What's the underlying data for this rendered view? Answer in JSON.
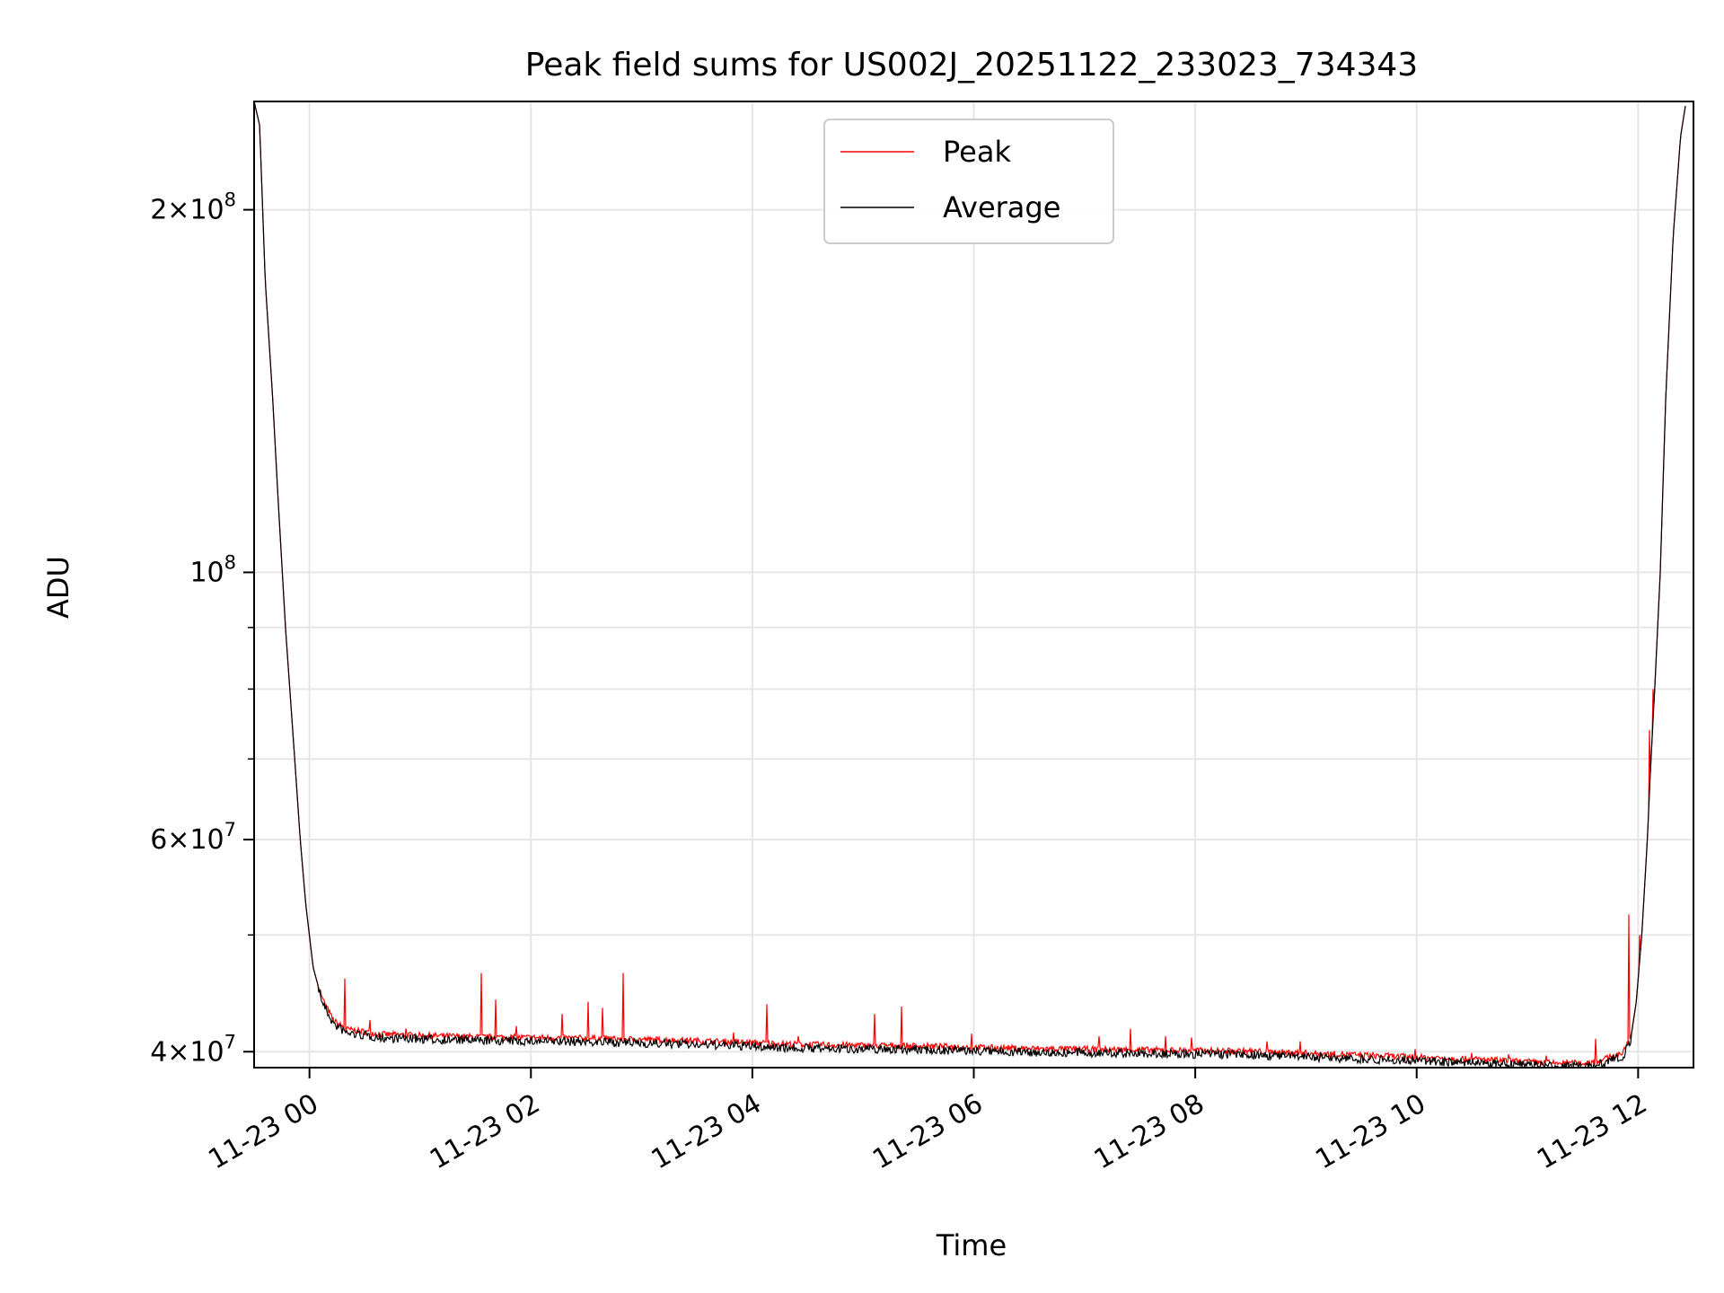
{
  "chart_data": {
    "type": "line",
    "title": "Peak field sums for US002J_20251122_233023_734343",
    "xlabel": "Time",
    "ylabel": "ADU",
    "x_scale": "time",
    "y_scale": "log",
    "xlim": [
      "2025-11-22 23:30",
      "2025-11-23 12:30"
    ],
    "ylim": [
      38800000,
      246000000
    ],
    "grid": true,
    "legend": {
      "placement": "upper center",
      "entries": [
        {
          "name": "Peak",
          "color": "#ff0000"
        },
        {
          "name": "Average",
          "color": "#000000"
        }
      ]
    },
    "x_ticks": [
      {
        "label": "11-23 00",
        "value": "2025-11-23 00:00"
      },
      {
        "label": "11-23 02",
        "value": "2025-11-23 02:00"
      },
      {
        "label": "11-23 04",
        "value": "2025-11-23 04:00"
      },
      {
        "label": "11-23 06",
        "value": "2025-11-23 06:00"
      },
      {
        "label": "11-23 08",
        "value": "2025-11-23 08:00"
      },
      {
        "label": "11-23 10",
        "value": "2025-11-23 10:00"
      },
      {
        "label": "11-23 12",
        "value": "2025-11-23 12:00"
      }
    ],
    "y_ticks": [
      {
        "value": 40000000,
        "base": "4",
        "exp": "7",
        "has_mantissa": true
      },
      {
        "value": 60000000,
        "base": "6",
        "exp": "7",
        "has_mantissa": true
      },
      {
        "value": 100000000,
        "base": "",
        "exp": "8",
        "has_mantissa": false
      },
      {
        "value": 200000000,
        "base": "2",
        "exp": "8",
        "has_mantissa": true
      }
    ],
    "y_minor_ticks": [
      50000000,
      70000000,
      80000000,
      90000000
    ],
    "series": [
      {
        "name": "Average",
        "color": "#000000",
        "points": [
          [
            "2025-11-22 23:30",
            246000000
          ],
          [
            "2025-11-22 23:33",
            235000000
          ],
          [
            "2025-11-22 23:36",
            175000000
          ],
          [
            "2025-11-22 23:40",
            140000000
          ],
          [
            "2025-11-22 23:43",
            115000000
          ],
          [
            "2025-11-22 23:47",
            90000000
          ],
          [
            "2025-11-22 23:52",
            70000000
          ],
          [
            "2025-11-22 23:55",
            60000000
          ],
          [
            "2025-11-22 23:58",
            53000000
          ],
          [
            "2025-11-23 00:02",
            47000000
          ],
          [
            "2025-11-23 00:07",
            44000000
          ],
          [
            "2025-11-23 00:13",
            42200000
          ],
          [
            "2025-11-23 00:20",
            41500000
          ],
          [
            "2025-11-23 00:40",
            41100000
          ],
          [
            "2025-11-23 01:30",
            40900000
          ],
          [
            "2025-11-23 02:30",
            40800000
          ],
          [
            "2025-11-23 03:30",
            40600000
          ],
          [
            "2025-11-23 04:30",
            40300000
          ],
          [
            "2025-11-23 05:30",
            40200000
          ],
          [
            "2025-11-23 06:30",
            40000000
          ],
          [
            "2025-11-23 07:30",
            39900000
          ],
          [
            "2025-11-23 08:30",
            39800000
          ],
          [
            "2025-11-23 09:30",
            39500000
          ],
          [
            "2025-11-23 10:30",
            39200000
          ],
          [
            "2025-11-23 11:15",
            38900000
          ],
          [
            "2025-11-23 11:30",
            38900000
          ],
          [
            "2025-11-23 11:40",
            39100000
          ],
          [
            "2025-11-23 11:52",
            39700000
          ],
          [
            "2025-11-23 11:56",
            41000000
          ],
          [
            "2025-11-23 11:59",
            44000000
          ],
          [
            "2025-11-23 12:02",
            50000000
          ],
          [
            "2025-11-23 12:05",
            60000000
          ],
          [
            "2025-11-23 12:07",
            70000000
          ],
          [
            "2025-11-23 12:09",
            80000000
          ],
          [
            "2025-11-23 12:12",
            100000000
          ],
          [
            "2025-11-23 12:15",
            140000000
          ],
          [
            "2025-11-23 12:19",
            190000000
          ],
          [
            "2025-11-23 12:23",
            230000000
          ],
          [
            "2025-11-23 12:26",
            246000000
          ]
        ]
      },
      {
        "name": "Peak",
        "color": "#ff0000",
        "spikes": [
          [
            "2025-11-23 00:19",
            46000000
          ],
          [
            "2025-11-23 00:33",
            42500000
          ],
          [
            "2025-11-23 00:52",
            41800000
          ],
          [
            "2025-11-23 01:33",
            46500000
          ],
          [
            "2025-11-23 01:41",
            44200000
          ],
          [
            "2025-11-23 01:52",
            42000000
          ],
          [
            "2025-11-23 02:17",
            43000000
          ],
          [
            "2025-11-23 02:31",
            44000000
          ],
          [
            "2025-11-23 02:39",
            43500000
          ],
          [
            "2025-11-23 02:50",
            46500000
          ],
          [
            "2025-11-23 03:50",
            41500000
          ],
          [
            "2025-11-23 04:08",
            43800000
          ],
          [
            "2025-11-23 04:25",
            41200000
          ],
          [
            "2025-11-23 05:06",
            43000000
          ],
          [
            "2025-11-23 05:21",
            43600000
          ],
          [
            "2025-11-23 05:59",
            41400000
          ],
          [
            "2025-11-23 07:08",
            41200000
          ],
          [
            "2025-11-23 07:25",
            41800000
          ],
          [
            "2025-11-23 07:44",
            41200000
          ],
          [
            "2025-11-23 07:58",
            41100000
          ],
          [
            "2025-11-23 08:39",
            40800000
          ],
          [
            "2025-11-23 08:57",
            40800000
          ],
          [
            "2025-11-23 09:59",
            40200000
          ],
          [
            "2025-11-23 10:30",
            39900000
          ],
          [
            "2025-11-23 10:50",
            39800000
          ],
          [
            "2025-11-23 11:10",
            39700000
          ],
          [
            "2025-11-23 11:37",
            41000000
          ],
          [
            "2025-11-23 11:55",
            52000000
          ],
          [
            "2025-11-23 12:01",
            50000000
          ],
          [
            "2025-11-23 12:06",
            74000000
          ],
          [
            "2025-11-23 12:08",
            80000000
          ],
          [
            "2025-11-23 12:15",
            130000000
          ]
        ]
      }
    ]
  }
}
